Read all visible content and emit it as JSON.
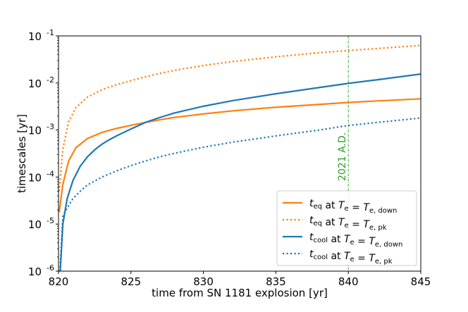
{
  "chart_data": {
    "type": "line",
    "xlabel": "time from SN 1181 explosion [yr]",
    "ylabel": "timescales [yr]",
    "xlim": [
      820,
      845
    ],
    "ylim_log10": [
      -6,
      -1
    ],
    "yscale": "log",
    "grid": false,
    "legend_position": "lower-right",
    "x_ticks": [
      820,
      825,
      830,
      835,
      840,
      845
    ],
    "y_tick_labels": [
      {
        "base": "10",
        "exp": "-6"
      },
      {
        "base": "10",
        "exp": "-5"
      },
      {
        "base": "10",
        "exp": "-4"
      },
      {
        "base": "10",
        "exp": "-3"
      },
      {
        "base": "10",
        "exp": "-2"
      },
      {
        "base": "10",
        "exp": "-1"
      }
    ],
    "annotation": {
      "text": "2021 A.D.",
      "x": 840,
      "color": "#2ca02c"
    },
    "series": [
      {
        "name_parts": {
          "t": "t",
          "tsub": "eq",
          "mid": " at ",
          "T": "T",
          "Tsub": "e",
          "eq": " = ",
          "T2": "T",
          "T2sub": "e, down"
        },
        "color": "#ff7f0e",
        "style": "solid",
        "x": [
          820.05,
          820.3,
          820.7,
          821.2,
          822,
          823,
          824,
          825,
          826,
          827,
          828,
          830,
          832,
          835,
          838,
          840,
          842,
          845
        ],
        "y": [
          1.8e-05,
          7e-05,
          0.00022,
          0.00042,
          0.00066,
          0.00089,
          0.00108,
          0.00126,
          0.00145,
          0.00165,
          0.00185,
          0.0022,
          0.00255,
          0.00305,
          0.0035,
          0.00385,
          0.00415,
          0.0046
        ]
      },
      {
        "name_parts": {
          "t": "t",
          "tsub": "eq",
          "mid": " at ",
          "T": "T",
          "Tsub": "e",
          "eq": " = ",
          "T2": "T",
          "T2sub": "e, pk"
        },
        "color": "#ff7f0e",
        "style": "dotted",
        "x": [
          820.05,
          820.3,
          820.7,
          821.2,
          822,
          823,
          824,
          825,
          826,
          827,
          828,
          830,
          832,
          835,
          838,
          840,
          842,
          845
        ],
        "y": [
          5e-05,
          0.0004,
          0.0015,
          0.003,
          0.005,
          0.0072,
          0.0092,
          0.0112,
          0.0135,
          0.016,
          0.0185,
          0.0235,
          0.0285,
          0.036,
          0.044,
          0.049,
          0.054,
          0.063
        ]
      },
      {
        "name_parts": {
          "t": "t",
          "tsub": "cool",
          "mid": " at ",
          "T": "T",
          "Tsub": "e",
          "eq": " = ",
          "T2": "T",
          "T2sub": "e, down"
        },
        "color": "#1f77b4",
        "style": "solid",
        "x": [
          820.12,
          820.3,
          820.6,
          821,
          821.5,
          822,
          822.5,
          823,
          823.5,
          824,
          825,
          826,
          827,
          828,
          830,
          832,
          835,
          838,
          840,
          842,
          845
        ],
        "y": [
          1e-06,
          1e-05,
          3.5e-05,
          8.5e-05,
          0.00017,
          0.00027,
          0.00038,
          0.0005,
          0.00062,
          0.00075,
          0.00105,
          0.00145,
          0.00185,
          0.0023,
          0.0032,
          0.0042,
          0.0059,
          0.008,
          0.0098,
          0.0117,
          0.0155
        ]
      },
      {
        "name_parts": {
          "t": "t",
          "tsub": "cool",
          "mid": " at ",
          "T": "T",
          "Tsub": "e",
          "eq": " = ",
          "T2": "T",
          "T2sub": "e, pk"
        },
        "color": "#1f77b4",
        "style": "dotted",
        "x": [
          820.1,
          820.3,
          820.6,
          821,
          821.5,
          822,
          823,
          824,
          825,
          826,
          827,
          828,
          830,
          832,
          835,
          838,
          840,
          842,
          845
        ],
        "y": [
          1e-06,
          1.5e-05,
          2.2e-05,
          3.5e-05,
          5e-05,
          6.8e-05,
          0.0001,
          0.000135,
          0.000175,
          0.00022,
          0.00027,
          0.00032,
          0.00043,
          0.00055,
          0.00075,
          0.001,
          0.00125,
          0.00145,
          0.0018
        ]
      }
    ]
  }
}
